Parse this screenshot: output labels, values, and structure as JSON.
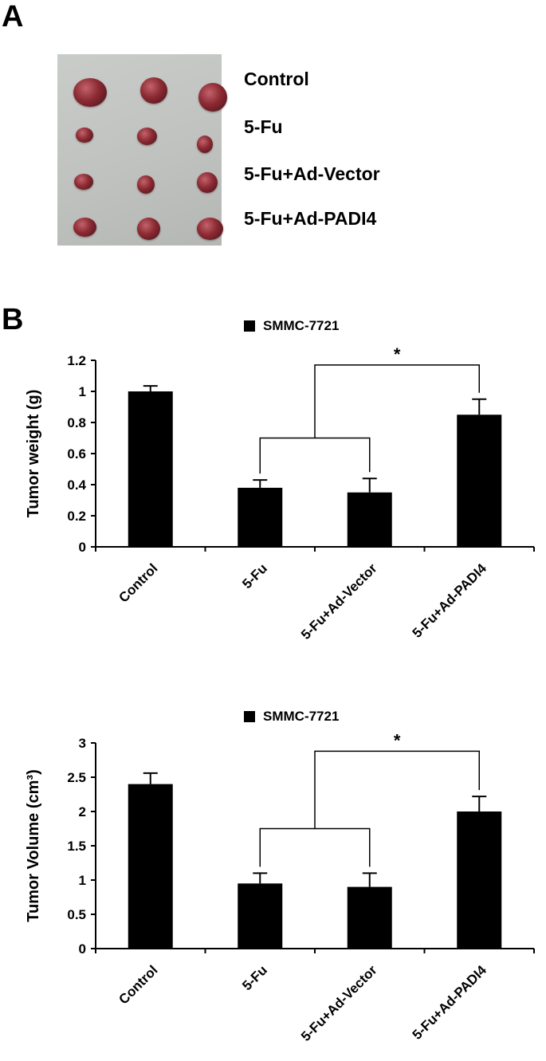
{
  "panel_a": {
    "label": "A",
    "groups": [
      {
        "name": "Control",
        "tumors": [
          {
            "x": 20,
            "y": 30,
            "w": 42,
            "h": 36
          },
          {
            "x": 104,
            "y": 29,
            "w": 34,
            "h": 33
          },
          {
            "x": 177,
            "y": 36,
            "w": 36,
            "h": 36
          }
        ]
      },
      {
        "name": "5-Fu",
        "tumors": [
          {
            "x": 23,
            "y": 92,
            "w": 22,
            "h": 19
          },
          {
            "x": 100,
            "y": 92,
            "w": 25,
            "h": 22
          },
          {
            "x": 175,
            "y": 102,
            "w": 20,
            "h": 22
          }
        ]
      },
      {
        "name": "5-Fu+Ad-Vector",
        "tumors": [
          {
            "x": 21,
            "y": 150,
            "w": 24,
            "h": 20
          },
          {
            "x": 100,
            "y": 152,
            "w": 22,
            "h": 23
          },
          {
            "x": 175,
            "y": 148,
            "w": 26,
            "h": 26
          }
        ]
      },
      {
        "name": "5-Fu+Ad-PADI4",
        "tumors": [
          {
            "x": 20,
            "y": 205,
            "w": 29,
            "h": 24
          },
          {
            "x": 100,
            "y": 205,
            "w": 29,
            "h": 28
          },
          {
            "x": 175,
            "y": 205,
            "w": 33,
            "h": 28
          }
        ]
      }
    ]
  },
  "panel_b": {
    "label": "B"
  },
  "chart_data": [
    {
      "type": "bar",
      "title": "",
      "legend": [
        "SMMC-7721"
      ],
      "legend_position": "top-center",
      "categories": [
        "Control",
        "5-Fu",
        "5-Fu+Ad-Vector",
        "5-Fu+Ad-PADI4"
      ],
      "series": [
        {
          "name": "SMMC-7721",
          "values": [
            1.0,
            0.38,
            0.35,
            0.85
          ],
          "errors": [
            0.035,
            0.05,
            0.09,
            0.1
          ]
        }
      ],
      "xlabel": "",
      "ylabel": "Tumor weight (g)",
      "ylim": [
        0,
        1.2
      ],
      "yticks": [
        "0",
        "0.2",
        "0.4",
        "0.6",
        "0.8",
        "1",
        "1.2"
      ],
      "grid": false,
      "significance": {
        "groups_compared": [
          "5-Fu",
          "5-Fu+Ad-Vector"
        ],
        "vs": "5-Fu+Ad-PADI4",
        "mark": "*"
      },
      "bar_color": "#000000"
    },
    {
      "type": "bar",
      "title": "",
      "legend": [
        "SMMC-7721"
      ],
      "legend_position": "top-center",
      "categories": [
        "Control",
        "5-Fu",
        "5-Fu+Ad-Vector",
        "5-Fu+Ad-PADI4"
      ],
      "series": [
        {
          "name": "SMMC-7721",
          "values": [
            2.4,
            0.95,
            0.9,
            2.0
          ],
          "errors": [
            0.16,
            0.15,
            0.2,
            0.22
          ]
        }
      ],
      "xlabel": "",
      "ylabel": "Tumor Volume (cm³)",
      "ylim": [
        0,
        3
      ],
      "yticks": [
        "0",
        "0.5",
        "1",
        "1.5",
        "2",
        "2.5",
        "3"
      ],
      "grid": false,
      "significance": {
        "groups_compared": [
          "5-Fu",
          "5-Fu+Ad-Vector"
        ],
        "vs": "5-Fu+Ad-PADI4",
        "mark": "*"
      },
      "bar_color": "#000000"
    }
  ]
}
